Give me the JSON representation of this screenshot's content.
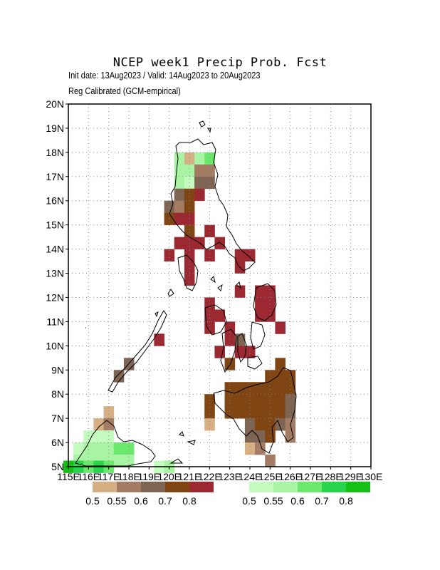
{
  "header": {
    "title": "NCEP week1 Precip Prob. Fcst",
    "init_line": "Init date: 13Aug2023 / Valid: 14Aug2023 to 20Aug2023",
    "method_line": "Reg Calibrated (GCM-empirical)"
  },
  "axes": {
    "lat_labels": [
      "5N",
      "6N",
      "7N",
      "8N",
      "9N",
      "10N",
      "11N",
      "12N",
      "13N",
      "14N",
      "15N",
      "16N",
      "17N",
      "18N",
      "19N",
      "20N"
    ],
    "lon_labels": [
      "115E",
      "116E",
      "117E",
      "118E",
      "119E",
      "120E",
      "121E",
      "122E",
      "123E",
      "124E",
      "125E",
      "126E",
      "127E",
      "128E",
      "129E",
      "130E"
    ],
    "lat_range": [
      5,
      20
    ],
    "lon_range": [
      115,
      130
    ],
    "grid": "dotted"
  },
  "colors": {
    "brown_scale": [
      "#d6b084",
      "#a47c64",
      "#7e6452",
      "#7f4512",
      "#9c2832"
    ],
    "green_scale": [
      "#c4fcc0",
      "#a8f4a4",
      "#6ce86c",
      "#28d44c",
      "#14c014"
    ],
    "coastline": "#000000"
  },
  "legend": {
    "dry_labels": [
      "0.5",
      "0.55",
      "0.6",
      "0.7",
      "0.8"
    ],
    "wet_labels": [
      "0.5",
      "0.55",
      "0.6",
      "0.7",
      "0.8"
    ]
  },
  "grid_cells": [
    {
      "lon": 120.5,
      "lat": 17.75,
      "c": "g1"
    },
    {
      "lon": 121.0,
      "lat": 17.75,
      "c": "b0"
    },
    {
      "lon": 121.5,
      "lat": 17.75,
      "c": "g1"
    },
    {
      "lon": 122.0,
      "lat": 17.75,
      "c": "g2"
    },
    {
      "lon": 120.5,
      "lat": 17.25,
      "c": "g1"
    },
    {
      "lon": 121.0,
      "lat": 17.25,
      "c": "g1"
    },
    {
      "lon": 121.5,
      "lat": 17.25,
      "c": "b1"
    },
    {
      "lon": 122.0,
      "lat": 17.25,
      "c": "b1"
    },
    {
      "lon": 120.5,
      "lat": 16.75,
      "c": "g1"
    },
    {
      "lon": 121.0,
      "lat": 16.75,
      "c": "g0"
    },
    {
      "lon": 121.5,
      "lat": 16.75,
      "c": "b2"
    },
    {
      "lon": 122.0,
      "lat": 16.75,
      "c": "b2"
    },
    {
      "lon": 120.5,
      "lat": 16.25,
      "c": "b2"
    },
    {
      "lon": 121.0,
      "lat": 16.25,
      "c": "b3"
    },
    {
      "lon": 121.5,
      "lat": 16.25,
      "c": "b4"
    },
    {
      "lon": 120.0,
      "lat": 15.75,
      "c": "b2"
    },
    {
      "lon": 120.5,
      "lat": 15.75,
      "c": "b1"
    },
    {
      "lon": 121.0,
      "lat": 15.75,
      "c": "b3"
    },
    {
      "lon": 120.0,
      "lat": 15.25,
      "c": "b3"
    },
    {
      "lon": 120.5,
      "lat": 15.25,
      "c": "b4"
    },
    {
      "lon": 121.0,
      "lat": 15.25,
      "c": "b4"
    },
    {
      "lon": 121.0,
      "lat": 14.75,
      "c": "b3"
    },
    {
      "lon": 122.0,
      "lat": 14.75,
      "c": "b4"
    },
    {
      "lon": 120.5,
      "lat": 14.25,
      "c": "b4"
    },
    {
      "lon": 121.0,
      "lat": 14.25,
      "c": "b4"
    },
    {
      "lon": 121.5,
      "lat": 14.25,
      "c": "b4"
    },
    {
      "lon": 122.5,
      "lat": 14.25,
      "c": "b4"
    },
    {
      "lon": 120.0,
      "lat": 13.75,
      "c": "b4"
    },
    {
      "lon": 121.0,
      "lat": 13.75,
      "c": "b4"
    },
    {
      "lon": 122.0,
      "lat": 13.75,
      "c": "b4"
    },
    {
      "lon": 123.5,
      "lat": 13.75,
      "c": "b4"
    },
    {
      "lon": 124.0,
      "lat": 13.75,
      "c": "b4"
    },
    {
      "lon": 121.0,
      "lat": 13.25,
      "c": "b4"
    },
    {
      "lon": 123.5,
      "lat": 13.25,
      "c": "b4"
    },
    {
      "lon": 121.0,
      "lat": 12.75,
      "c": "b4"
    },
    {
      "lon": 123.5,
      "lat": 12.25,
      "c": "b4"
    },
    {
      "lon": 124.5,
      "lat": 12.25,
      "c": "b4"
    },
    {
      "lon": 125.0,
      "lat": 12.25,
      "c": "b4"
    },
    {
      "lon": 122.0,
      "lat": 11.75,
      "c": "b4"
    },
    {
      "lon": 124.5,
      "lat": 11.75,
      "c": "b4"
    },
    {
      "lon": 125.0,
      "lat": 11.75,
      "c": "b4"
    },
    {
      "lon": 122.0,
      "lat": 11.25,
      "c": "b4"
    },
    {
      "lon": 122.5,
      "lat": 11.25,
      "c": "b4"
    },
    {
      "lon": 124.5,
      "lat": 11.25,
      "c": "b4"
    },
    {
      "lon": 125.0,
      "lat": 11.25,
      "c": "b4"
    },
    {
      "lon": 122.0,
      "lat": 10.75,
      "c": "b4"
    },
    {
      "lon": 123.0,
      "lat": 10.75,
      "c": "b4"
    },
    {
      "lon": 125.5,
      "lat": 10.75,
      "c": "b4"
    },
    {
      "lon": 123.0,
      "lat": 10.25,
      "c": "b4"
    },
    {
      "lon": 123.5,
      "lat": 10.25,
      "c": "b2"
    },
    {
      "lon": 119.5,
      "lat": 10.25,
      "c": "b4"
    },
    {
      "lon": 122.5,
      "lat": 9.75,
      "c": "b4"
    },
    {
      "lon": 123.5,
      "lat": 9.75,
      "c": "b4"
    },
    {
      "lon": 124.0,
      "lat": 9.75,
      "c": "b4"
    },
    {
      "lon": 123.0,
      "lat": 9.25,
      "c": "b3"
    },
    {
      "lon": 125.5,
      "lat": 9.25,
      "c": "b3"
    },
    {
      "lon": 118.0,
      "lat": 9.25,
      "c": "b2"
    },
    {
      "lon": 117.5,
      "lat": 8.75,
      "c": "b2"
    },
    {
      "lon": 125.0,
      "lat": 8.75,
      "c": "b3"
    },
    {
      "lon": 125.5,
      "lat": 8.75,
      "c": "b3"
    },
    {
      "lon": 126.0,
      "lat": 8.75,
      "c": "b3"
    },
    {
      "lon": 123.0,
      "lat": 8.25,
      "c": "b3"
    },
    {
      "lon": 123.5,
      "lat": 8.25,
      "c": "b3"
    },
    {
      "lon": 124.0,
      "lat": 8.25,
      "c": "b3"
    },
    {
      "lon": 124.5,
      "lat": 8.25,
      "c": "b3"
    },
    {
      "lon": 125.0,
      "lat": 8.25,
      "c": "b3"
    },
    {
      "lon": 125.5,
      "lat": 8.25,
      "c": "b3"
    },
    {
      "lon": 126.0,
      "lat": 8.25,
      "c": "b3"
    },
    {
      "lon": 122.0,
      "lat": 7.75,
      "c": "b3"
    },
    {
      "lon": 123.0,
      "lat": 7.75,
      "c": "b3"
    },
    {
      "lon": 123.5,
      "lat": 7.75,
      "c": "b3"
    },
    {
      "lon": 124.0,
      "lat": 7.75,
      "c": "b3"
    },
    {
      "lon": 124.5,
      "lat": 7.75,
      "c": "b3"
    },
    {
      "lon": 125.0,
      "lat": 7.75,
      "c": "b3"
    },
    {
      "lon": 125.5,
      "lat": 7.75,
      "c": "b3"
    },
    {
      "lon": 126.0,
      "lat": 7.75,
      "c": "b2"
    },
    {
      "lon": 122.0,
      "lat": 7.25,
      "c": "b3"
    },
    {
      "lon": 123.0,
      "lat": 7.25,
      "c": "b3"
    },
    {
      "lon": 123.5,
      "lat": 7.25,
      "c": "b3"
    },
    {
      "lon": 124.0,
      "lat": 7.25,
      "c": "b3"
    },
    {
      "lon": 124.5,
      "lat": 7.25,
      "c": "b3"
    },
    {
      "lon": 125.0,
      "lat": 7.25,
      "c": "b3"
    },
    {
      "lon": 125.5,
      "lat": 7.25,
      "c": "b3"
    },
    {
      "lon": 126.0,
      "lat": 7.25,
      "c": "b2"
    },
    {
      "lon": 122.0,
      "lat": 6.75,
      "c": "b0"
    },
    {
      "lon": 124.0,
      "lat": 6.75,
      "c": "b2"
    },
    {
      "lon": 124.5,
      "lat": 6.75,
      "c": "b3"
    },
    {
      "lon": 125.0,
      "lat": 6.75,
      "c": "b3"
    },
    {
      "lon": 125.5,
      "lat": 6.75,
      "c": "b2"
    },
    {
      "lon": 126.0,
      "lat": 6.75,
      "c": "b1"
    },
    {
      "lon": 124.0,
      "lat": 6.25,
      "c": "b2"
    },
    {
      "lon": 124.5,
      "lat": 6.25,
      "c": "b2"
    },
    {
      "lon": 125.0,
      "lat": 6.25,
      "c": "b3"
    },
    {
      "lon": 126.0,
      "lat": 6.25,
      "c": "b1"
    },
    {
      "lon": 124.0,
      "lat": 5.75,
      "c": "b0"
    },
    {
      "lon": 124.5,
      "lat": 5.75,
      "c": "b1"
    },
    {
      "lon": 125.0,
      "lat": 5.25,
      "c": "b1"
    },
    {
      "lon": 117.0,
      "lat": 7.25,
      "c": "b0"
    },
    {
      "lon": 116.5,
      "lat": 6.75,
      "c": "b0"
    },
    {
      "lon": 117.0,
      "lat": 6.75,
      "c": "b1"
    },
    {
      "lon": 116.0,
      "lat": 6.25,
      "c": "g0"
    },
    {
      "lon": 116.5,
      "lat": 6.25,
      "c": "g0"
    },
    {
      "lon": 117.0,
      "lat": 6.25,
      "c": "g0"
    },
    {
      "lon": 115.5,
      "lat": 5.75,
      "c": "g0"
    },
    {
      "lon": 116.0,
      "lat": 5.75,
      "c": "g1"
    },
    {
      "lon": 116.5,
      "lat": 5.75,
      "c": "g1"
    },
    {
      "lon": 117.0,
      "lat": 5.75,
      "c": "g1"
    },
    {
      "lon": 118.0,
      "lat": 5.75,
      "c": "g2"
    },
    {
      "lon": 117.5,
      "lat": 5.75,
      "c": "g2"
    },
    {
      "lon": 115.5,
      "lat": 5.25,
      "c": "g1"
    },
    {
      "lon": 116.0,
      "lat": 5.25,
      "c": "g1"
    },
    {
      "lon": 116.5,
      "lat": 5.25,
      "c": "g1"
    },
    {
      "lon": 117.0,
      "lat": 5.25,
      "c": "g1"
    },
    {
      "lon": 117.5,
      "lat": 5.25,
      "c": "g1"
    },
    {
      "lon": 118.0,
      "lat": 5.25,
      "c": "g1"
    },
    {
      "lon": 115.0,
      "lat": 5.0,
      "c": "g4"
    },
    {
      "lon": 115.5,
      "lat": 5.0,
      "c": "g3"
    },
    {
      "lon": 116.0,
      "lat": 5.0,
      "c": "g2"
    },
    {
      "lon": 116.5,
      "lat": 5.0,
      "c": "g3"
    },
    {
      "lon": 117.0,
      "lat": 5.0,
      "c": "g2"
    },
    {
      "lon": 119.5,
      "lat": 5.0,
      "c": "g0"
    },
    {
      "lon": 120.0,
      "lat": 5.0,
      "c": "g1"
    }
  ]
}
